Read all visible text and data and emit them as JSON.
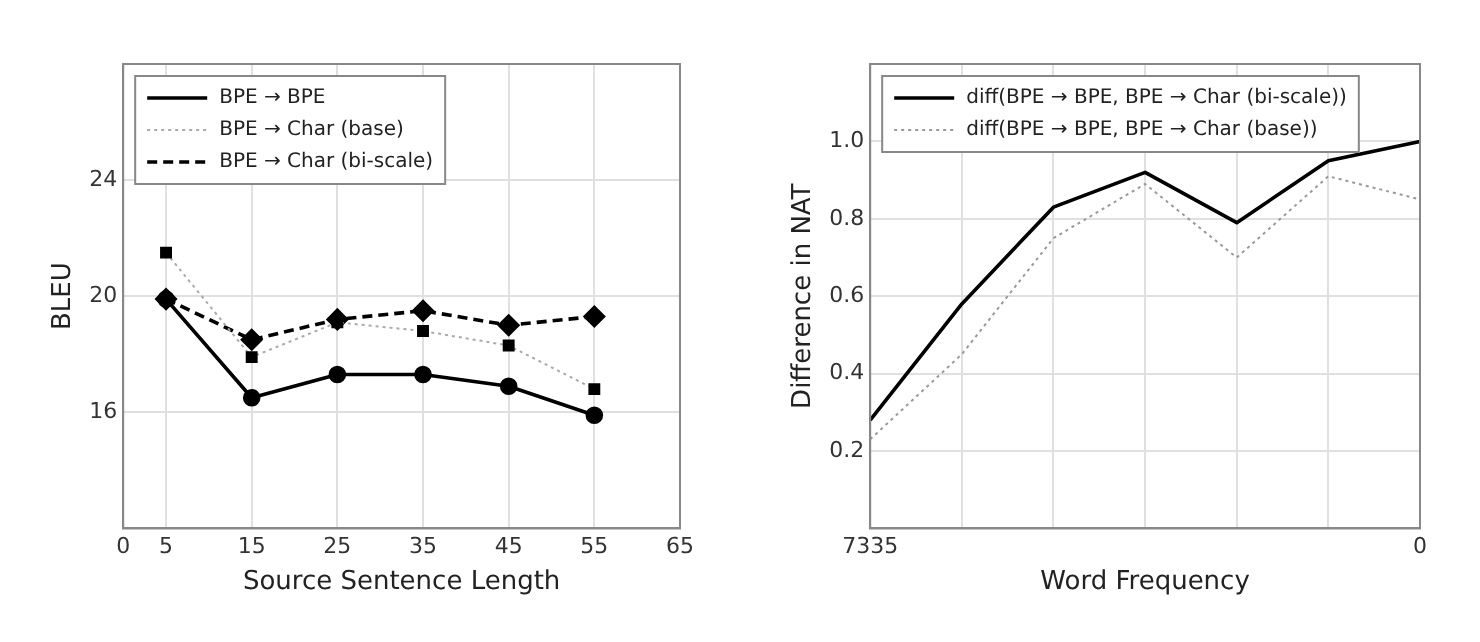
{
  "chart_data": [
    {
      "type": "line",
      "xlabel": "Source Sentence Length",
      "ylabel": "BLEU",
      "x": [
        5,
        15,
        25,
        35,
        45,
        55
      ],
      "xlim": [
        0,
        65
      ],
      "xticks": [
        0,
        5,
        15,
        25,
        35,
        45,
        55,
        65
      ],
      "ylim": [
        12,
        28
      ],
      "yticks": [
        16,
        20,
        24
      ],
      "grid": true,
      "legend": "top left",
      "series": [
        {
          "name": "BPE → BPE",
          "color": "#000000",
          "values": [
            19.9,
            16.5,
            17.3,
            17.3,
            16.9,
            15.9
          ],
          "marker": "circle",
          "line_style": "solid"
        },
        {
          "name": "BPE → Char (base)",
          "color": "#000000",
          "values": [
            21.5,
            17.9,
            19.1,
            18.8,
            18.3,
            16.8
          ],
          "marker": "square",
          "line_style": "dotted"
        },
        {
          "name": "BPE → Char (bi-scale)",
          "color": "#000000",
          "values": [
            19.9,
            18.5,
            19.2,
            19.5,
            19.0,
            19.3
          ],
          "marker": "diamond",
          "line_style": "dashed"
        }
      ]
    },
    {
      "type": "line",
      "xlabel": "Word Frequency",
      "ylabel": "Difference in NAT",
      "categories": [
        "7335",
        null,
        null,
        null,
        null,
        null,
        "0"
      ],
      "ylim": [
        0,
        1.2
      ],
      "yticks": [
        0.2,
        0.4,
        0.6,
        0.8,
        {
          "value": 1,
          "label": "1.0"
        }
      ],
      "grid": true,
      "legend": "top left",
      "marker": "none",
      "series": [
        {
          "name": "diff(BPE → BPE, BPE → Char (bi-scale))",
          "color": "#000000",
          "values": [
            0.28,
            0.58,
            0.83,
            0.92,
            0.79,
            0.95,
            1.0
          ],
          "line_style": "solid"
        },
        {
          "name": "diff(BPE → BPE, BPE → Char (base))",
          "color": "#999999",
          "values": [
            0.23,
            0.45,
            0.75,
            0.89,
            0.7,
            0.91,
            0.85
          ],
          "line_style": "dotted"
        }
      ]
    }
  ]
}
